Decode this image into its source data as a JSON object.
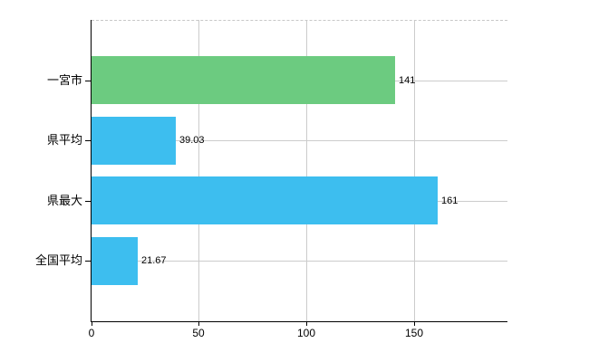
{
  "chart": {
    "background_color": "#ffffff",
    "axis_color": "#000000",
    "grid_color": "#cccccc",
    "text_color": "#000000"
  },
  "chart_data": {
    "type": "bar",
    "orientation": "horizontal",
    "title": "",
    "xlabel": "",
    "ylabel": "",
    "categories": [
      "一宮市",
      "県平均",
      "県最大",
      "全国平均"
    ],
    "values": [
      141,
      39.03,
      161,
      21.67
    ],
    "value_labels": [
      "141",
      "39.03",
      "161",
      "21.67"
    ],
    "bar_colors": [
      "#6ccb80",
      "#3dbeef",
      "#3dbeef",
      "#3dbeef"
    ],
    "bar_patterned": [
      true,
      false,
      false,
      false
    ],
    "x_ticks": [
      0,
      50,
      100,
      150
    ],
    "x_tick_labels": [
      "0",
      "50",
      "100",
      "150"
    ],
    "xlim": [
      0,
      193.3
    ],
    "grid": true,
    "legend": false
  }
}
